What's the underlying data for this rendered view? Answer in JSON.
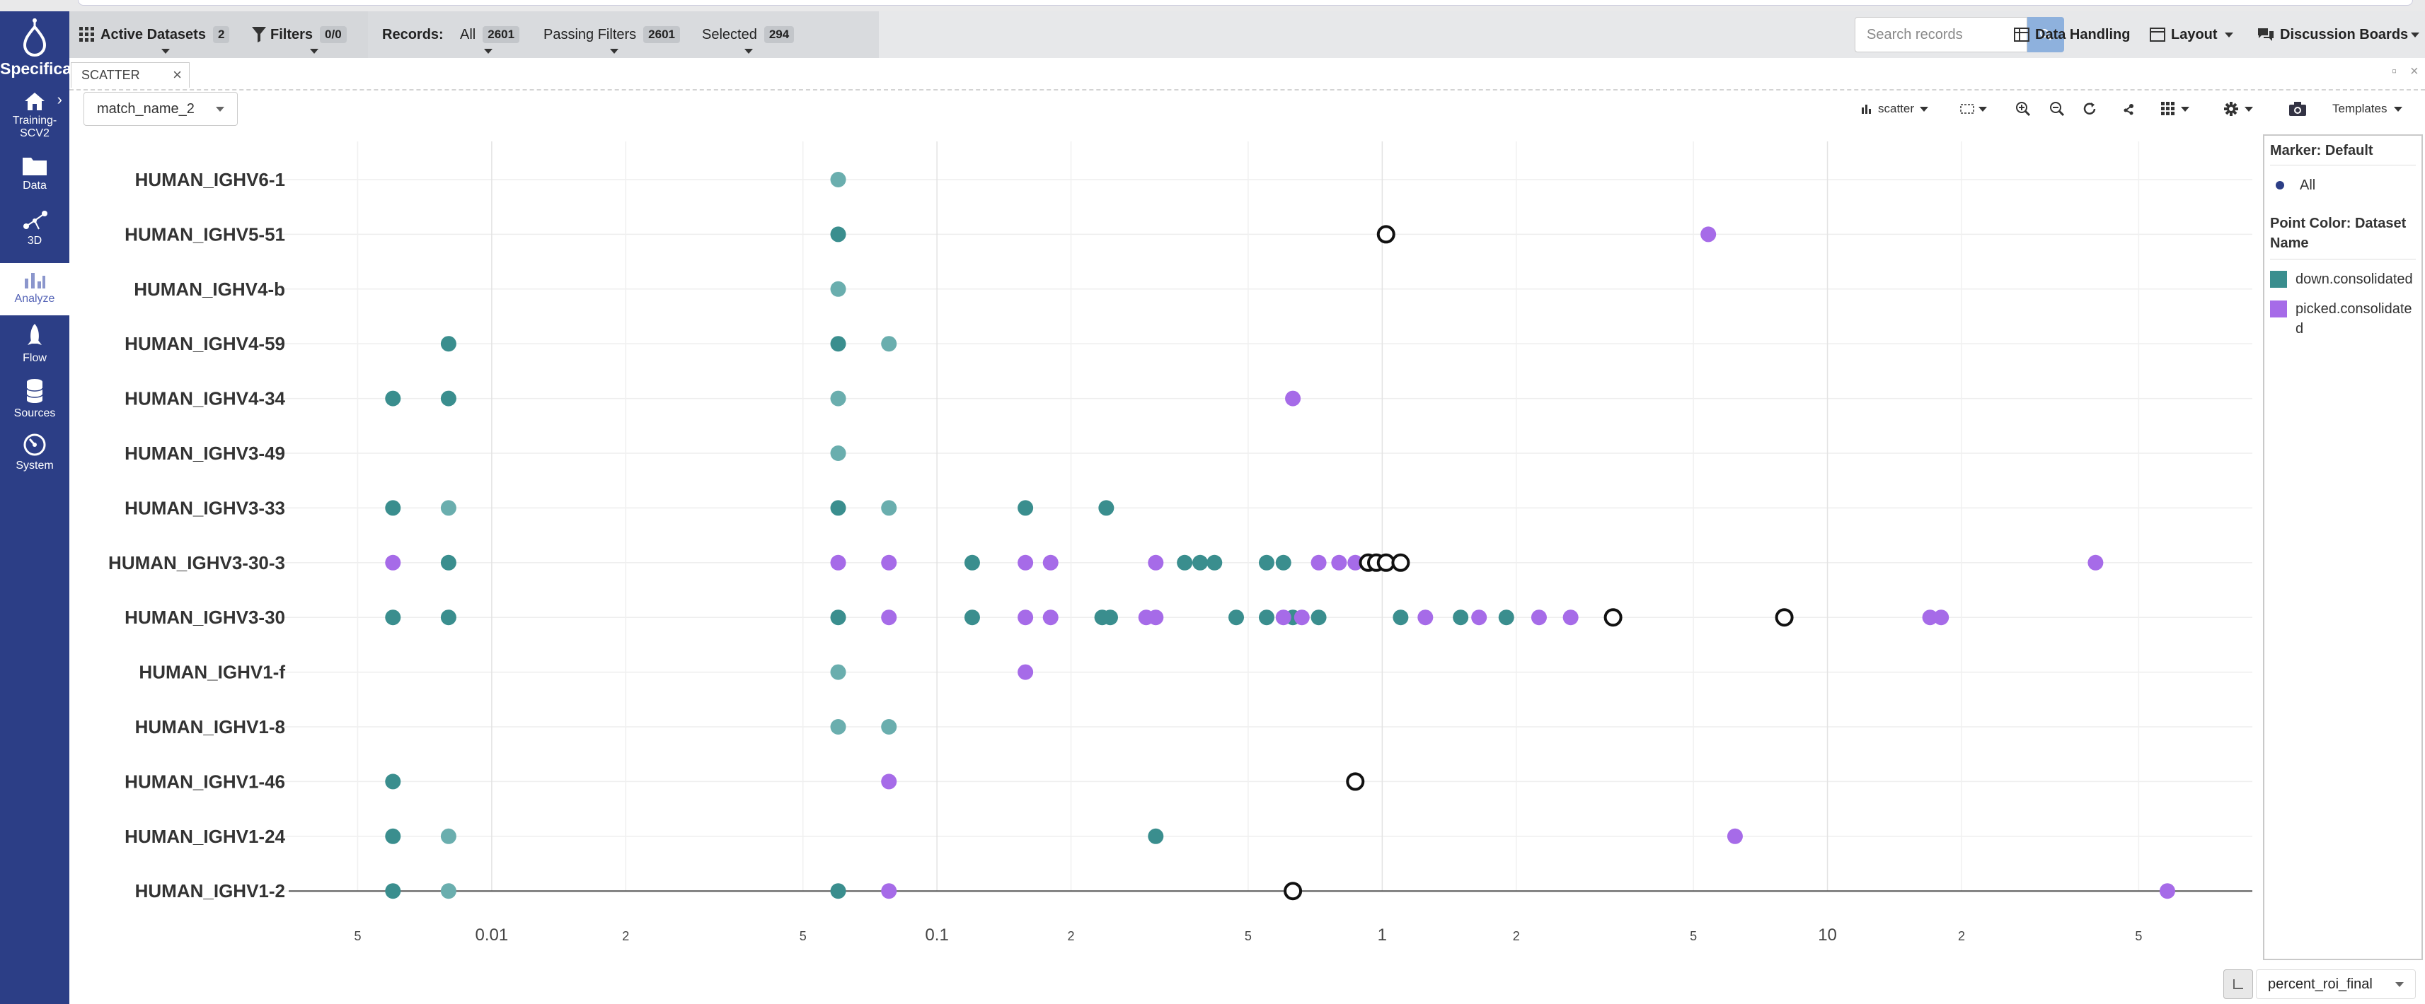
{
  "app": {
    "brand": "Specifica",
    "sidebar_items": [
      {
        "label": "Training-SCV2",
        "icon": "home-icon"
      },
      {
        "label": "Data",
        "icon": "folder-icon"
      },
      {
        "label": "3D",
        "icon": "graph-3d-icon"
      },
      {
        "label": "Analyze",
        "icon": "bar-chart-icon",
        "active": true
      },
      {
        "label": "Flow",
        "icon": "rocket-icon"
      },
      {
        "label": "Sources",
        "icon": "database-icon"
      },
      {
        "label": "System",
        "icon": "dashboard-icon"
      }
    ]
  },
  "toolbar": {
    "active_datasets_label": "Active Datasets",
    "active_datasets_count": "2",
    "filters_label": "Filters",
    "filters_count": "0/0",
    "records_label": "Records:",
    "all_label": "All",
    "all_count": "2601",
    "passing_label": "Passing Filters",
    "passing_count": "2601",
    "selected_label": "Selected",
    "selected_count": "294",
    "search_placeholder": "Search records",
    "data_handling_label": "Data Handling",
    "layout_label": "Layout",
    "discussion_label": "Discussion Boards"
  },
  "panel": {
    "tab_label": "SCATTER",
    "y_axis_field": "match_name_2",
    "x_axis_field": "percent_roi_final",
    "chart_type_label": "scatter",
    "templates_label": "Templates"
  },
  "legend": {
    "marker_title": "Marker: Default",
    "marker_all": "All",
    "color_title": "Point Color: Dataset Name",
    "entries": [
      {
        "label": "down.consolidated",
        "color": "#3a8e8e"
      },
      {
        "label": "picked.consolidated",
        "color": "#a66be8"
      }
    ]
  },
  "colors": {
    "sidebar": "#2c3e86",
    "teal": "#3a8e8e",
    "teal_light": "#6aaeae",
    "purple": "#a66be8",
    "search_button": "#8eb1dd"
  },
  "chart_data": {
    "type": "scatter",
    "x_scale": "log",
    "xlim": [
      0.0035,
      90
    ],
    "x_tick_labels": [
      "5",
      "0.01",
      "2",
      "5",
      "0.1",
      "2",
      "5",
      "1",
      "2",
      "5",
      "10",
      "2",
      "5"
    ],
    "x_tick_values": [
      0.005,
      0.01,
      0.02,
      0.05,
      0.1,
      0.2,
      0.5,
      1,
      2,
      5,
      10,
      20,
      50
    ],
    "categories": [
      "HUMAN_IGHV6-1",
      "HUMAN_IGHV5-51",
      "HUMAN_IGHV4-b",
      "HUMAN_IGHV4-59",
      "HUMAN_IGHV4-34",
      "HUMAN_IGHV3-49",
      "HUMAN_IGHV3-33",
      "HUMAN_IGHV3-30-3",
      "HUMAN_IGHV3-30",
      "HUMAN_IGHV1-f",
      "HUMAN_IGHV1-8",
      "HUMAN_IGHV1-46",
      "HUMAN_IGHV1-24",
      "HUMAN_IGHV1-2"
    ],
    "series": [
      {
        "name": "down.consolidated",
        "color": "#3a8e8e",
        "points": [
          {
            "y": "HUMAN_IGHV6-1",
            "x": 0.06
          },
          {
            "y": "HUMAN_IGHV5-51",
            "x": 0.06
          },
          {
            "y": "HUMAN_IGHV4-b",
            "x": 0.06
          },
          {
            "y": "HUMAN_IGHV4-59",
            "x": 0.008
          },
          {
            "y": "HUMAN_IGHV4-59",
            "x": 0.06
          },
          {
            "y": "HUMAN_IGHV4-59",
            "x": 0.078
          },
          {
            "y": "HUMAN_IGHV4-34",
            "x": 0.006
          },
          {
            "y": "HUMAN_IGHV4-34",
            "x": 0.008
          },
          {
            "y": "HUMAN_IGHV4-34",
            "x": 0.06
          },
          {
            "y": "HUMAN_IGHV3-49",
            "x": 0.06
          },
          {
            "y": "HUMAN_IGHV3-33",
            "x": 0.006
          },
          {
            "y": "HUMAN_IGHV3-33",
            "x": 0.008
          },
          {
            "y": "HUMAN_IGHV3-33",
            "x": 0.06
          },
          {
            "y": "HUMAN_IGHV3-33",
            "x": 0.078
          },
          {
            "y": "HUMAN_IGHV3-33",
            "x": 0.158
          },
          {
            "y": "HUMAN_IGHV3-33",
            "x": 0.24
          },
          {
            "y": "HUMAN_IGHV3-30-3",
            "x": 0.008
          },
          {
            "y": "HUMAN_IGHV3-30-3",
            "x": 0.12
          },
          {
            "y": "HUMAN_IGHV3-30-3",
            "x": 0.36
          },
          {
            "y": "HUMAN_IGHV3-30-3",
            "x": 0.39
          },
          {
            "y": "HUMAN_IGHV3-30-3",
            "x": 0.42
          },
          {
            "y": "HUMAN_IGHV3-30-3",
            "x": 0.55
          },
          {
            "y": "HUMAN_IGHV3-30-3",
            "x": 0.6
          },
          {
            "y": "HUMAN_IGHV3-30",
            "x": 0.006
          },
          {
            "y": "HUMAN_IGHV3-30",
            "x": 0.008
          },
          {
            "y": "HUMAN_IGHV3-30",
            "x": 0.06
          },
          {
            "y": "HUMAN_IGHV3-30",
            "x": 0.12
          },
          {
            "y": "HUMAN_IGHV3-30",
            "x": 0.235
          },
          {
            "y": "HUMAN_IGHV3-30",
            "x": 0.245
          },
          {
            "y": "HUMAN_IGHV3-30",
            "x": 0.47
          },
          {
            "y": "HUMAN_IGHV3-30",
            "x": 0.55
          },
          {
            "y": "HUMAN_IGHV3-30",
            "x": 0.63
          },
          {
            "y": "HUMAN_IGHV3-30",
            "x": 0.72
          },
          {
            "y": "HUMAN_IGHV3-30",
            "x": 1.1
          },
          {
            "y": "HUMAN_IGHV3-30",
            "x": 1.5
          },
          {
            "y": "HUMAN_IGHV3-30",
            "x": 1.9
          },
          {
            "y": "HUMAN_IGHV1-f",
            "x": 0.06
          },
          {
            "y": "HUMAN_IGHV1-8",
            "x": 0.06
          },
          {
            "y": "HUMAN_IGHV1-8",
            "x": 0.078
          },
          {
            "y": "HUMAN_IGHV1-46",
            "x": 0.006
          },
          {
            "y": "HUMAN_IGHV1-24",
            "x": 0.006
          },
          {
            "y": "HUMAN_IGHV1-24",
            "x": 0.008
          },
          {
            "y": "HUMAN_IGHV1-24",
            "x": 0.31
          },
          {
            "y": "HUMAN_IGHV1-2",
            "x": 0.006
          },
          {
            "y": "HUMAN_IGHV1-2",
            "x": 0.008
          },
          {
            "y": "HUMAN_IGHV1-2",
            "x": 0.06
          }
        ]
      },
      {
        "name": "picked.consolidated",
        "color": "#a66be8",
        "points": [
          {
            "y": "HUMAN_IGHV5-51",
            "x": 5.4
          },
          {
            "y": "HUMAN_IGHV4-34",
            "x": 0.63
          },
          {
            "y": "HUMAN_IGHV3-30-3",
            "x": 0.006
          },
          {
            "y": "HUMAN_IGHV3-30-3",
            "x": 0.06
          },
          {
            "y": "HUMAN_IGHV3-30-3",
            "x": 0.078
          },
          {
            "y": "HUMAN_IGHV3-30-3",
            "x": 0.158
          },
          {
            "y": "HUMAN_IGHV3-30-3",
            "x": 0.18
          },
          {
            "y": "HUMAN_IGHV3-30-3",
            "x": 0.31
          },
          {
            "y": "HUMAN_IGHV3-30-3",
            "x": 0.72
          },
          {
            "y": "HUMAN_IGHV3-30-3",
            "x": 0.8
          },
          {
            "y": "HUMAN_IGHV3-30-3",
            "x": 0.87
          },
          {
            "y": "HUMAN_IGHV3-30-3",
            "x": 40
          },
          {
            "y": "HUMAN_IGHV3-30",
            "x": 0.078
          },
          {
            "y": "HUMAN_IGHV3-30",
            "x": 0.158
          },
          {
            "y": "HUMAN_IGHV3-30",
            "x": 0.18
          },
          {
            "y": "HUMAN_IGHV3-30",
            "x": 0.295
          },
          {
            "y": "HUMAN_IGHV3-30",
            "x": 0.31
          },
          {
            "y": "HUMAN_IGHV3-30",
            "x": 0.6
          },
          {
            "y": "HUMAN_IGHV3-30",
            "x": 0.66
          },
          {
            "y": "HUMAN_IGHV3-30",
            "x": 1.25
          },
          {
            "y": "HUMAN_IGHV3-30",
            "x": 1.65
          },
          {
            "y": "HUMAN_IGHV3-30",
            "x": 2.25
          },
          {
            "y": "HUMAN_IGHV3-30",
            "x": 2.65
          },
          {
            "y": "HUMAN_IGHV3-30",
            "x": 17
          },
          {
            "y": "HUMAN_IGHV3-30",
            "x": 18
          },
          {
            "y": "HUMAN_IGHV1-f",
            "x": 0.158
          },
          {
            "y": "HUMAN_IGHV1-46",
            "x": 0.078
          },
          {
            "y": "HUMAN_IGHV1-24",
            "x": 6.2
          },
          {
            "y": "HUMAN_IGHV1-2",
            "x": 0.078
          },
          {
            "y": "HUMAN_IGHV1-2",
            "x": 58
          }
        ]
      }
    ],
    "selected_points": [
      {
        "y": "HUMAN_IGHV5-51",
        "x": 1.02
      },
      {
        "y": "HUMAN_IGHV3-30-3",
        "x": 0.93
      },
      {
        "y": "HUMAN_IGHV3-30-3",
        "x": 0.97
      },
      {
        "y": "HUMAN_IGHV3-30-3",
        "x": 1.02
      },
      {
        "y": "HUMAN_IGHV3-30-3",
        "x": 1.1
      },
      {
        "y": "HUMAN_IGHV3-30",
        "x": 3.3
      },
      {
        "y": "HUMAN_IGHV3-30",
        "x": 8
      },
      {
        "y": "HUMAN_IGHV1-46",
        "x": 0.87
      },
      {
        "y": "HUMAN_IGHV1-2",
        "x": 0.63
      }
    ]
  }
}
